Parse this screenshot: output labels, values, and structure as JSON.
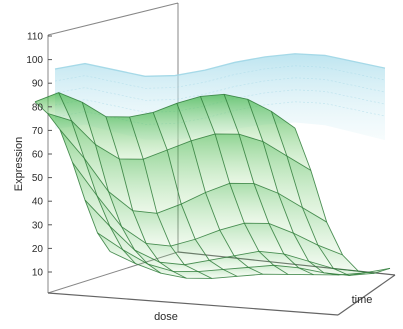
{
  "chart_data": {
    "type": "surface3d",
    "xlabel": "dose",
    "ylabel": "time",
    "zlabel": "Expression",
    "z_ticks": [
      10,
      20,
      30,
      40,
      50,
      60,
      70,
      80,
      90,
      100,
      110
    ],
    "zlim": [
      10,
      110
    ],
    "series": [
      {
        "role": "front",
        "color": "#3fbf3a",
        "mesh_color": "#2f7d3a",
        "note_rows": "surface levels across dose (columns) for successive time slices (rows)",
        "levels": [
          [
            80,
            84,
            80,
            74,
            74,
            76,
            80,
            83,
            84,
            82,
            77,
            70
          ],
          [
            77,
            74,
            64,
            58,
            58,
            62,
            66,
            69,
            69,
            66,
            60,
            54
          ],
          [
            72,
            60,
            46,
            38,
            37,
            41,
            46,
            50,
            50,
            46,
            40,
            34
          ],
          [
            60,
            46,
            33,
            26,
            25,
            28,
            32,
            35,
            35,
            31,
            26,
            22
          ],
          [
            46,
            35,
            25,
            20,
            19,
            21,
            23,
            25,
            24,
            21,
            18,
            17
          ],
          [
            34,
            27,
            21,
            18,
            18,
            19,
            20,
            21,
            20,
            18,
            17,
            18
          ],
          [
            28,
            23,
            19,
            17,
            17,
            18,
            19,
            19,
            19,
            19,
            20,
            22
          ]
        ]
      },
      {
        "role": "back",
        "color": "#9fd6e6",
        "levels": [
          96,
          98,
          95,
          92,
          92,
          94,
          97,
          99,
          100,
          99,
          96,
          93
        ]
      }
    ]
  }
}
